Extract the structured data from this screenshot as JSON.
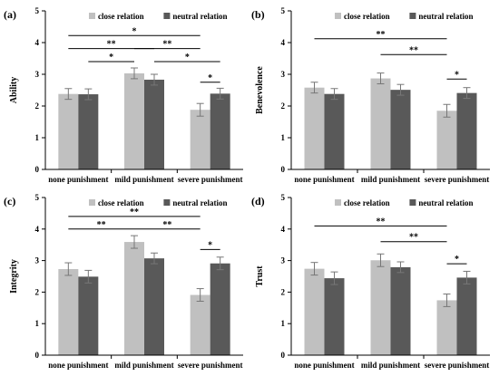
{
  "chart_data": [
    {
      "type": "bar",
      "panel_label": "(a)",
      "ylabel": "Ability",
      "ylim": [
        0,
        5
      ],
      "yticks": [
        "0",
        "1",
        "2",
        "3",
        "4",
        "5"
      ],
      "categories": [
        "none punishment",
        "mild punishment",
        "severe punishment"
      ],
      "series": [
        {
          "name": "close relation",
          "color": "#c0c0c0",
          "values": [
            2.38,
            3.03,
            1.88
          ],
          "errors": [
            0.17,
            0.17,
            0.2
          ]
        },
        {
          "name": "neutral relation",
          "color": "#595959",
          "values": [
            2.37,
            2.83,
            2.39
          ],
          "errors": [
            0.17,
            0.17,
            0.17
          ]
        }
      ],
      "significance": [
        {
          "label": "*",
          "from": [
            0,
            0
          ],
          "to": [
            2,
            0
          ],
          "level": 4.22
        },
        {
          "label": "**",
          "from": [
            0,
            0
          ],
          "to": [
            1,
            1
          ],
          "level": 3.81
        },
        {
          "label": "**",
          "from": [
            1,
            0
          ],
          "to": [
            2,
            0
          ],
          "level": 3.81
        },
        {
          "label": "*",
          "from": [
            0,
            1
          ],
          "to": [
            1,
            0
          ],
          "level": 3.4
        },
        {
          "label": "*",
          "from": [
            1,
            1
          ],
          "to": [
            2,
            1
          ],
          "level": 3.4
        },
        {
          "label": "*",
          "from": [
            2,
            0
          ],
          "to": [
            2,
            1
          ],
          "level": 2.75
        }
      ]
    },
    {
      "type": "bar",
      "panel_label": "(b)",
      "ylabel": "Benevolence",
      "ylim": [
        0,
        5
      ],
      "yticks": [
        "0",
        "1",
        "2",
        "3",
        "4",
        "5"
      ],
      "categories": [
        "none punishment",
        "mild punishment",
        "severe punishment"
      ],
      "series": [
        {
          "name": "close relation",
          "color": "#c0c0c0",
          "values": [
            2.58,
            2.87,
            1.85
          ],
          "errors": [
            0.17,
            0.17,
            0.2
          ]
        },
        {
          "name": "neutral relation",
          "color": "#595959",
          "values": [
            2.38,
            2.51,
            2.41
          ],
          "errors": [
            0.17,
            0.17,
            0.17
          ]
        }
      ],
      "significance": [
        {
          "label": "**",
          "from": [
            0,
            0
          ],
          "to": [
            2,
            0
          ],
          "level": 4.12
        },
        {
          "label": "**",
          "from": [
            1,
            0
          ],
          "to": [
            2,
            0
          ],
          "level": 3.62
        },
        {
          "label": "*",
          "from": [
            2,
            0
          ],
          "to": [
            2,
            1
          ],
          "level": 2.85
        }
      ]
    },
    {
      "type": "bar",
      "panel_label": "(c)",
      "ylabel": "Integrity",
      "ylim": [
        0,
        5
      ],
      "yticks": [
        "0",
        "1",
        "2",
        "3",
        "4",
        "5"
      ],
      "categories": [
        "none punishment",
        "mild punishment",
        "severe punishment"
      ],
      "series": [
        {
          "name": "close relation",
          "color": "#c0c0c0",
          "values": [
            2.73,
            3.59,
            1.91
          ],
          "errors": [
            0.2,
            0.2,
            0.2
          ]
        },
        {
          "name": "neutral relation",
          "color": "#595959",
          "values": [
            2.49,
            3.07,
            2.91
          ],
          "errors": [
            0.2,
            0.17,
            0.2
          ]
        }
      ],
      "significance": [
        {
          "label": "**",
          "from": [
            0,
            0
          ],
          "to": [
            2,
            0
          ],
          "level": 4.4
        },
        {
          "label": "**",
          "from": [
            0,
            0
          ],
          "to": [
            1,
            0
          ],
          "level": 4.0
        },
        {
          "label": "**",
          "from": [
            1,
            0
          ],
          "to": [
            2,
            0
          ],
          "level": 4.0
        },
        {
          "label": "*",
          "from": [
            2,
            0
          ],
          "to": [
            2,
            1
          ],
          "level": 3.35
        }
      ]
    },
    {
      "type": "bar",
      "panel_label": "(d)",
      "ylabel": "Trust",
      "ylim": [
        0,
        5
      ],
      "yticks": [
        "0",
        "1",
        "2",
        "3",
        "4",
        "5"
      ],
      "categories": [
        "none punishment",
        "mild punishment",
        "severe punishment"
      ],
      "series": [
        {
          "name": "close relation",
          "color": "#c0c0c0",
          "values": [
            2.74,
            3.01,
            1.74
          ],
          "errors": [
            0.2,
            0.2,
            0.2
          ]
        },
        {
          "name": "neutral relation",
          "color": "#595959",
          "values": [
            2.44,
            2.79,
            2.46
          ],
          "errors": [
            0.2,
            0.17,
            0.2
          ]
        }
      ],
      "significance": [
        {
          "label": "**",
          "from": [
            0,
            0
          ],
          "to": [
            2,
            0
          ],
          "level": 4.1
        },
        {
          "label": "**",
          "from": [
            1,
            0
          ],
          "to": [
            2,
            0
          ],
          "level": 3.6
        },
        {
          "label": "*",
          "from": [
            2,
            0
          ],
          "to": [
            2,
            1
          ],
          "level": 2.9
        }
      ]
    }
  ]
}
